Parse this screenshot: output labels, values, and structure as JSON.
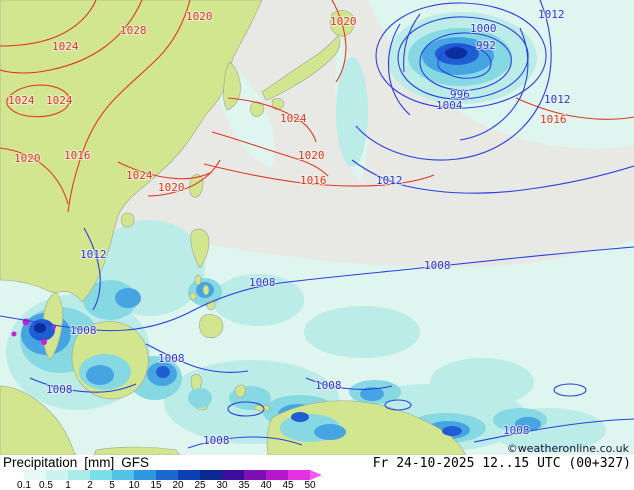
{
  "map": {
    "copyright": "©weatheronline.co.uk",
    "colors": {
      "land": "#d2e58f",
      "ocean_dry": "#e8e9e5",
      "isobar_red": "#e03822",
      "isobar_blue": "#2b3fe0"
    },
    "isobar_labels": {
      "red": [
        "1020",
        "1028",
        "1024",
        "1024",
        "1024",
        "1020",
        "1016",
        "1024",
        "1020",
        "1020",
        "1024",
        "1020",
        "1016",
        "1016"
      ],
      "blue": [
        "1012",
        "1000",
        "992",
        "996",
        "1004",
        "1012",
        "1012",
        "1012",
        "1008",
        "1008",
        "1008",
        "1008",
        "1008",
        "1008",
        "1008",
        "1008"
      ]
    }
  },
  "legend": {
    "parameter": "Precipitation",
    "units": "[mm]",
    "model": "GFS",
    "datetime": "Fr 24-10-2025 12..15 UTC (00+327)",
    "scale_ticks": [
      "0.1",
      "0.5",
      "1",
      "2",
      "5",
      "10",
      "15",
      "20",
      "25",
      "30",
      "35",
      "40",
      "45",
      "50"
    ],
    "scale_colors": [
      "#ffffff",
      "#e6f9f6",
      "#cdf3ef",
      "#a9ebe9",
      "#7adee8",
      "#50c3e6",
      "#2f97dd",
      "#1b69cd",
      "#0e40b5",
      "#082a90",
      "#3b0d9e",
      "#7d10b5",
      "#b617ca",
      "#e431e1"
    ],
    "scale_arrow_color": "#f558ee"
  }
}
